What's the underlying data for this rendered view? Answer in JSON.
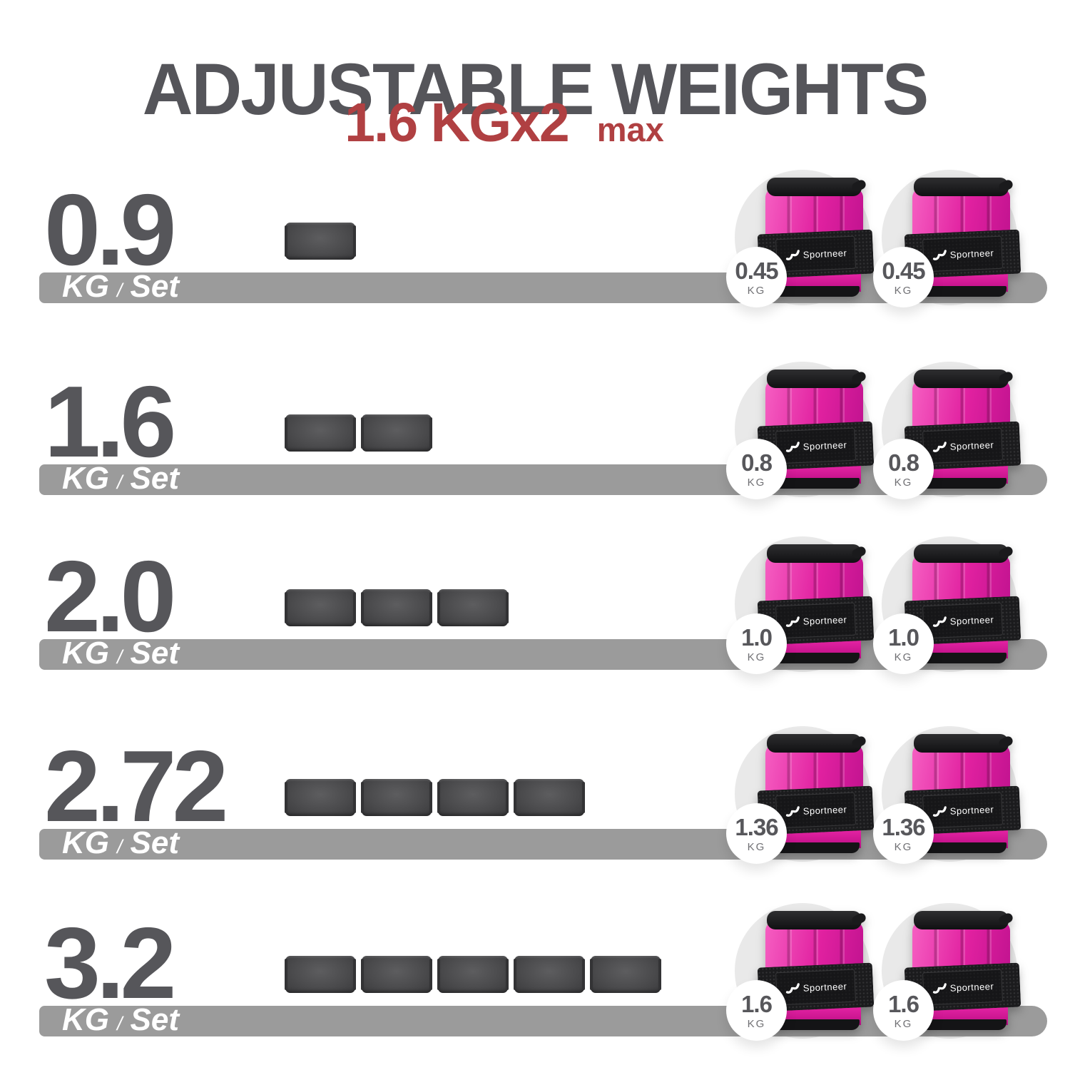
{
  "title": "ADJUSTABLE WEIGHTS",
  "subtitle": {
    "value": "1.6 KGx2",
    "suffix": "max"
  },
  "unit_label": {
    "kg": "KG",
    "slash": "/",
    "set": "Set"
  },
  "brand": "Sportneer",
  "rows": [
    {
      "total": "0.9",
      "bags": 1,
      "per_weight": "0.45",
      "per_unit": "KG"
    },
    {
      "total": "1.6",
      "bags": 2,
      "per_weight": "0.8",
      "per_unit": "KG"
    },
    {
      "total": "2.0",
      "bags": 3,
      "per_weight": "1.0",
      "per_unit": "KG"
    },
    {
      "total": "2.72",
      "bags": 4,
      "per_weight": "1.36",
      "per_unit": "KG"
    },
    {
      "total": "3.2",
      "bags": 5,
      "per_weight": "1.6",
      "per_unit": "KG"
    }
  ],
  "colors": {
    "accent_red": "#b04042",
    "title_gray": "#55555a",
    "number_gray": "#56565a",
    "bar_gray": "#9b9b9b",
    "weight_pink": "#e121a0",
    "sandbag_gray": "#4b4b4d",
    "circle_gray": "#e9e9e9",
    "badge_text": "#57575b"
  }
}
